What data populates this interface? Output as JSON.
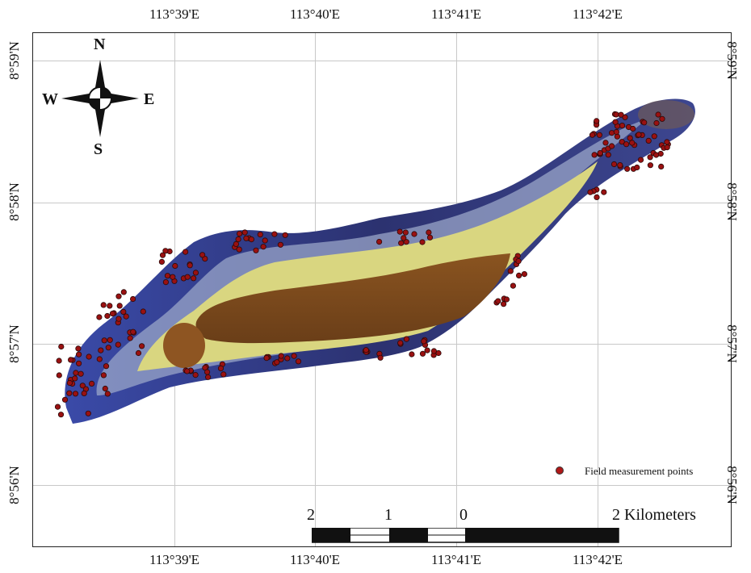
{
  "axes": {
    "lon_ticks": [
      "113°39'E",
      "113°40'E",
      "113°41'E",
      "113°42'E"
    ],
    "lat_ticks": [
      "8°59'N",
      "8°58'N",
      "8°57'N",
      "8°56'N"
    ]
  },
  "compass": {
    "n": "N",
    "s": "S",
    "e": "E",
    "w": "W"
  },
  "legend": {
    "label": "Field measurement points",
    "marker_color": "#b01818"
  },
  "scale_bar": {
    "labels": [
      "2",
      "1",
      "0",
      "2 Kilometers"
    ]
  },
  "colors": {
    "deep_water": "#2a2f6a",
    "reef_flat": "#d8d27a",
    "lagoon": "#7a4a1a",
    "point": "#9a1111"
  }
}
